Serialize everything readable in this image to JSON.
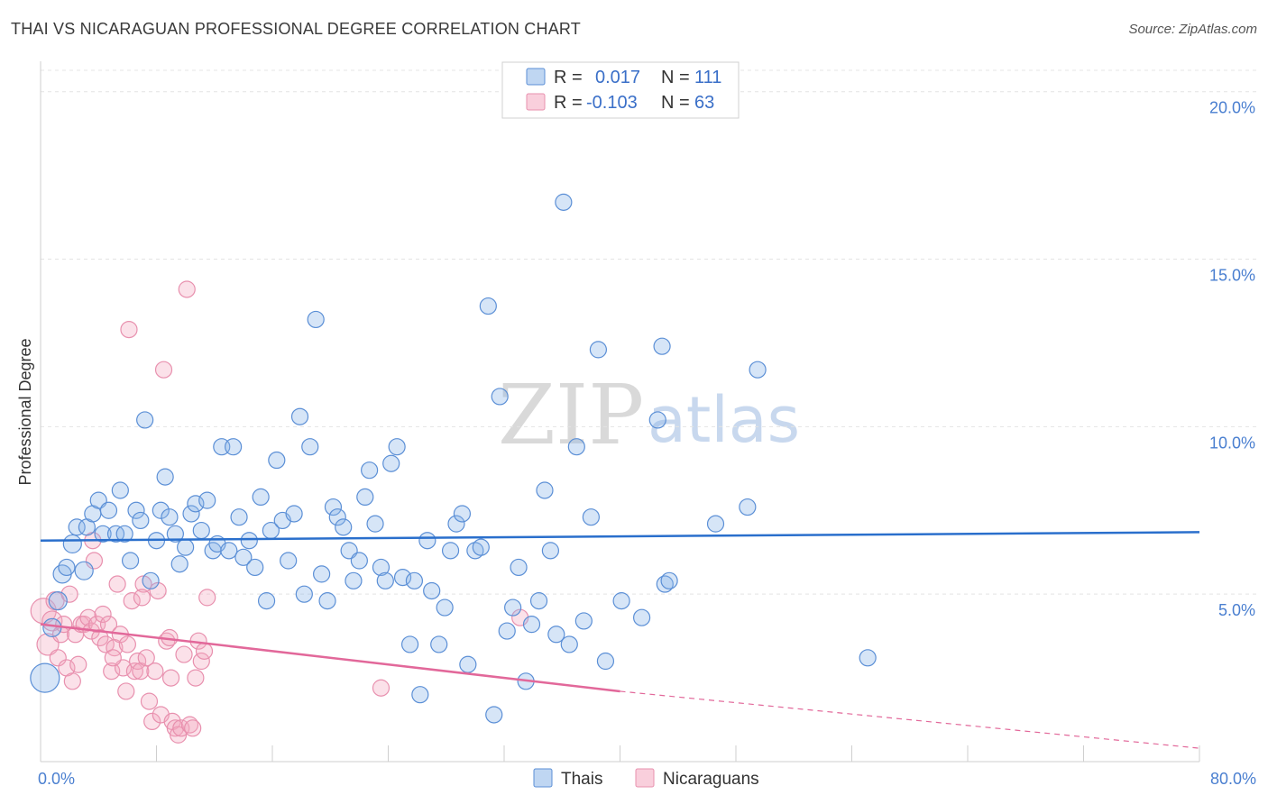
{
  "title": "THAI VS NICARAGUAN PROFESSIONAL DEGREE CORRELATION CHART",
  "source": "Source: ZipAtlas.com",
  "watermark": {
    "zip": "ZIP",
    "atlas": "atlas"
  },
  "chart_data": {
    "type": "scatter",
    "ylabel": "Professional Degree",
    "xlabel": "",
    "xlim": [
      0,
      80
    ],
    "ylim": [
      0,
      20.8
    ],
    "x_tick_labels": [
      "0.0%",
      "80.0%"
    ],
    "y_ticks": [
      5,
      10,
      15,
      20
    ],
    "y_tick_labels": [
      "5.0%",
      "10.0%",
      "15.0%",
      "20.0%"
    ],
    "colors": {
      "thai": "#8ab4e8",
      "thai_line": "#2a6fcc",
      "nic": "#f4a8c0",
      "nic_line": "#e2689a"
    },
    "legend": {
      "r_label": "R =",
      "n_label": "N =",
      "rows": [
        {
          "r": "0.017",
          "n": "111"
        },
        {
          "r": "-0.103",
          "n": "63"
        }
      ]
    },
    "series": [
      {
        "name": "Thais",
        "trend": {
          "x0": 0,
          "y0": 6.6,
          "x1": 80,
          "y1": 6.85
        },
        "points": [
          [
            0.3,
            2.5,
            16
          ],
          [
            0.8,
            4.0,
            10
          ],
          [
            1.2,
            4.8,
            10
          ],
          [
            1.5,
            5.6,
            10
          ],
          [
            1.8,
            5.8,
            9
          ],
          [
            2.2,
            6.5,
            10
          ],
          [
            2.5,
            7.0,
            9
          ],
          [
            3.0,
            5.7,
            10
          ],
          [
            3.2,
            7.0,
            9
          ],
          [
            3.6,
            7.4,
            9
          ],
          [
            4.0,
            7.8,
            9
          ],
          [
            4.3,
            6.8,
            9
          ],
          [
            4.7,
            7.5,
            9
          ],
          [
            5.2,
            6.8,
            9
          ],
          [
            5.5,
            8.1,
            9
          ],
          [
            5.8,
            6.8,
            9
          ],
          [
            6.2,
            6.0,
            9
          ],
          [
            6.6,
            7.5,
            9
          ],
          [
            6.9,
            7.2,
            9
          ],
          [
            7.2,
            10.2,
            9
          ],
          [
            7.6,
            5.4,
            9
          ],
          [
            8.0,
            6.6,
            9
          ],
          [
            8.3,
            7.5,
            9
          ],
          [
            8.6,
            8.5,
            9
          ],
          [
            8.9,
            7.3,
            9
          ],
          [
            9.3,
            6.8,
            9
          ],
          [
            9.6,
            5.9,
            9
          ],
          [
            10.0,
            6.4,
            9
          ],
          [
            10.4,
            7.4,
            9
          ],
          [
            10.7,
            7.7,
            9
          ],
          [
            11.1,
            6.9,
            9
          ],
          [
            11.5,
            7.8,
            9
          ],
          [
            11.9,
            6.3,
            9
          ],
          [
            12.2,
            6.5,
            9
          ],
          [
            12.5,
            9.4,
            9
          ],
          [
            13.0,
            6.3,
            9
          ],
          [
            13.3,
            9.4,
            9
          ],
          [
            13.7,
            7.3,
            9
          ],
          [
            14.0,
            6.1,
            9
          ],
          [
            14.4,
            6.6,
            9
          ],
          [
            14.8,
            5.8,
            9
          ],
          [
            15.2,
            7.9,
            9
          ],
          [
            15.6,
            4.8,
            9
          ],
          [
            15.9,
            6.9,
            9
          ],
          [
            16.3,
            9.0,
            9
          ],
          [
            16.7,
            7.2,
            9
          ],
          [
            17.1,
            6.0,
            9
          ],
          [
            17.5,
            7.4,
            9
          ],
          [
            17.9,
            10.3,
            9
          ],
          [
            18.2,
            5.0,
            9
          ],
          [
            18.6,
            9.4,
            9
          ],
          [
            19.0,
            13.2,
            9
          ],
          [
            19.4,
            5.6,
            9
          ],
          [
            19.8,
            4.8,
            9
          ],
          [
            20.2,
            7.6,
            9
          ],
          [
            20.5,
            7.3,
            9
          ],
          [
            20.9,
            7.0,
            9
          ],
          [
            21.3,
            6.3,
            9
          ],
          [
            21.6,
            5.4,
            9
          ],
          [
            22.0,
            6.0,
            9
          ],
          [
            22.4,
            7.9,
            9
          ],
          [
            22.7,
            8.7,
            9
          ],
          [
            23.1,
            7.1,
            9
          ],
          [
            23.5,
            5.8,
            9
          ],
          [
            23.8,
            5.4,
            9
          ],
          [
            24.2,
            8.9,
            9
          ],
          [
            24.6,
            9.4,
            9
          ],
          [
            25.0,
            5.5,
            9
          ],
          [
            25.5,
            3.5,
            9
          ],
          [
            25.8,
            5.4,
            9
          ],
          [
            26.2,
            2.0,
            9
          ],
          [
            26.7,
            6.6,
            9
          ],
          [
            27.0,
            5.1,
            9
          ],
          [
            27.5,
            3.5,
            9
          ],
          [
            27.9,
            4.6,
            9
          ],
          [
            28.3,
            6.3,
            9
          ],
          [
            28.7,
            7.1,
            9
          ],
          [
            29.1,
            7.4,
            9
          ],
          [
            29.5,
            2.9,
            9
          ],
          [
            30.0,
            6.3,
            9
          ],
          [
            30.4,
            6.4,
            9
          ],
          [
            30.9,
            13.6,
            9
          ],
          [
            31.3,
            1.4,
            9
          ],
          [
            31.7,
            10.9,
            9
          ],
          [
            32.2,
            3.9,
            9
          ],
          [
            32.6,
            4.6,
            9
          ],
          [
            33.0,
            5.8,
            9
          ],
          [
            33.5,
            2.4,
            9
          ],
          [
            33.9,
            4.1,
            9
          ],
          [
            34.4,
            4.8,
            9
          ],
          [
            34.8,
            8.1,
            9
          ],
          [
            35.2,
            6.3,
            9
          ],
          [
            35.6,
            3.8,
            9
          ],
          [
            36.1,
            16.7,
            9
          ],
          [
            36.5,
            3.5,
            9
          ],
          [
            37.0,
            9.4,
            9
          ],
          [
            37.5,
            4.2,
            9
          ],
          [
            38.0,
            7.3,
            9
          ],
          [
            38.5,
            12.3,
            9
          ],
          [
            39.0,
            3.0,
            9
          ],
          [
            40.1,
            4.8,
            9
          ],
          [
            41.5,
            4.3,
            9
          ],
          [
            42.6,
            10.2,
            9
          ],
          [
            42.9,
            12.4,
            9
          ],
          [
            43.1,
            5.3,
            9
          ],
          [
            43.4,
            5.4,
            9
          ],
          [
            46.6,
            7.1,
            9
          ],
          [
            48.8,
            7.6,
            9
          ],
          [
            49.5,
            11.7,
            9
          ],
          [
            57.1,
            3.1,
            9
          ]
        ]
      },
      {
        "name": "Nicaraguans",
        "trend": {
          "x0": 0,
          "y0": 4.1,
          "x1": 40,
          "y1": 2.1
        },
        "trend_dashed": {
          "x0": 40,
          "y0": 2.1,
          "x1": 80,
          "y1": 0.4
        },
        "points": [
          [
            0.2,
            4.5,
            14
          ],
          [
            0.5,
            3.5,
            12
          ],
          [
            0.8,
            4.2,
            11
          ],
          [
            1.0,
            4.8,
            10
          ],
          [
            1.2,
            3.1,
            9
          ],
          [
            1.4,
            3.8,
            9
          ],
          [
            1.6,
            4.1,
            9
          ],
          [
            1.8,
            2.8,
            9
          ],
          [
            2.0,
            5.0,
            9
          ],
          [
            2.2,
            2.4,
            9
          ],
          [
            2.4,
            3.8,
            9
          ],
          [
            2.6,
            2.9,
            9
          ],
          [
            2.8,
            4.1,
            9
          ],
          [
            3.0,
            4.1,
            9
          ],
          [
            3.3,
            4.3,
            9
          ],
          [
            3.5,
            3.9,
            9
          ],
          [
            3.7,
            6.0,
            9
          ],
          [
            3.9,
            4.1,
            9
          ],
          [
            4.1,
            3.7,
            9
          ],
          [
            4.3,
            4.4,
            9
          ],
          [
            4.5,
            3.5,
            9
          ],
          [
            4.7,
            4.1,
            9
          ],
          [
            4.9,
            2.7,
            9
          ],
          [
            5.1,
            3.4,
            9
          ],
          [
            5.3,
            5.3,
            9
          ],
          [
            5.5,
            3.8,
            9
          ],
          [
            5.7,
            2.8,
            9
          ],
          [
            5.9,
            2.1,
            9
          ],
          [
            6.1,
            12.9,
            9
          ],
          [
            6.3,
            4.8,
            9
          ],
          [
            6.5,
            2.7,
            9
          ],
          [
            6.7,
            3.0,
            9
          ],
          [
            6.9,
            2.7,
            9
          ],
          [
            7.1,
            5.3,
            9
          ],
          [
            7.3,
            3.1,
            9
          ],
          [
            7.5,
            1.8,
            9
          ],
          [
            7.7,
            1.2,
            9
          ],
          [
            7.9,
            2.7,
            9
          ],
          [
            8.1,
            5.1,
            9
          ],
          [
            8.3,
            1.4,
            9
          ],
          [
            8.5,
            11.7,
            9
          ],
          [
            8.7,
            3.6,
            9
          ],
          [
            8.9,
            3.7,
            9
          ],
          [
            9.1,
            1.2,
            9
          ],
          [
            9.3,
            1.0,
            9
          ],
          [
            9.5,
            0.8,
            9
          ],
          [
            9.7,
            1.0,
            9
          ],
          [
            9.9,
            3.2,
            9
          ],
          [
            10.1,
            14.1,
            9
          ],
          [
            10.3,
            1.1,
            9
          ],
          [
            10.5,
            1.0,
            9
          ],
          [
            10.7,
            2.5,
            9
          ],
          [
            10.9,
            3.6,
            9
          ],
          [
            11.1,
            3.0,
            9
          ],
          [
            11.3,
            3.3,
            9
          ],
          [
            11.5,
            4.9,
            9
          ],
          [
            5.0,
            3.1,
            9
          ],
          [
            6.0,
            3.5,
            9
          ],
          [
            3.6,
            6.6,
            9
          ],
          [
            7.0,
            4.9,
            9
          ],
          [
            9.0,
            2.5,
            9
          ],
          [
            23.5,
            2.2,
            9
          ],
          [
            33.1,
            4.3,
            9
          ]
        ]
      }
    ],
    "bottom_legend": [
      "Thais",
      "Nicaraguans"
    ]
  }
}
